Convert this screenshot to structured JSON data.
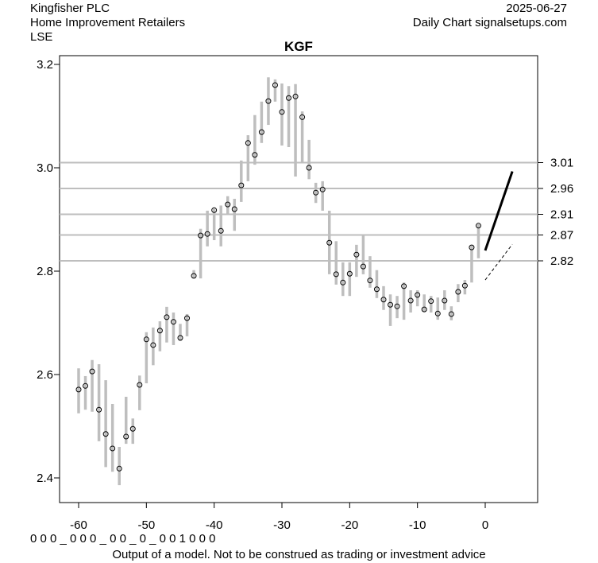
{
  "header": {
    "company": "Kingfisher PLC",
    "sector": "Home Improvement Retailers",
    "exchange": "LSE",
    "date": "2025-06-27",
    "source": "Daily Chart signalsetups.com"
  },
  "footer": {
    "signal_row": "0 0 0 _ 0 0 0 _ 0 0 _ 0 _ 0 0 1 0 0 0",
    "disclaimer": "Output of a model. Not to be construed as trading or investment advice"
  },
  "chart_data": {
    "type": "ohlc",
    "title": "KGF",
    "xlim": [
      -63,
      7.5
    ],
    "ylim": [
      2.355,
      3.22
    ],
    "x_ticks": [
      -60,
      -50,
      -40,
      -30,
      -20,
      -10,
      0
    ],
    "y_ticks": [
      2.4,
      2.6,
      2.8,
      3.0,
      3.2
    ],
    "y_tick_labels": [
      "2.4",
      "2.6",
      "2.8",
      "3.0",
      "3.2"
    ],
    "levels": [
      3.01,
      2.96,
      2.91,
      2.87,
      2.82
    ],
    "level_labels": [
      "3.01",
      "2.96",
      "2.91",
      "2.87",
      "2.82"
    ],
    "colors": {
      "bar": "#bebebe",
      "level": "#bebebe",
      "projection": "#000000"
    },
    "bars": [
      [
        -60,
        2.612,
        2.525,
        2.571
      ],
      [
        -59,
        2.597,
        2.532,
        2.578
      ],
      [
        -58,
        2.628,
        2.528,
        2.606
      ],
      [
        -57,
        2.62,
        2.471,
        2.532
      ],
      [
        -56,
        2.589,
        2.421,
        2.485
      ],
      [
        -55,
        2.543,
        2.412,
        2.457
      ],
      [
        -54,
        2.46,
        2.386,
        2.418
      ],
      [
        -53,
        2.557,
        2.466,
        2.48
      ],
      [
        -52,
        2.515,
        2.466,
        2.495
      ],
      [
        -51,
        2.598,
        2.531,
        2.58
      ],
      [
        -50,
        2.682,
        2.583,
        2.668
      ],
      [
        -49,
        2.691,
        2.618,
        2.657
      ],
      [
        -48,
        2.703,
        2.645,
        2.685
      ],
      [
        -47,
        2.731,
        2.662,
        2.711
      ],
      [
        -46,
        2.72,
        2.657,
        2.702
      ],
      [
        -45,
        2.698,
        2.665,
        2.671
      ],
      [
        -44,
        2.717,
        2.674,
        2.709
      ],
      [
        -43,
        2.802,
        2.786,
        2.791
      ],
      [
        -42,
        2.882,
        2.786,
        2.869
      ],
      [
        -41,
        2.917,
        2.848,
        2.872
      ],
      [
        -40,
        2.921,
        2.86,
        2.918
      ],
      [
        -39,
        2.927,
        2.848,
        2.878
      ],
      [
        -38,
        2.945,
        2.909,
        2.929
      ],
      [
        -37,
        2.94,
        2.878,
        2.92
      ],
      [
        -36,
        3.014,
        2.934,
        2.966
      ],
      [
        -35,
        3.063,
        2.974,
        3.048
      ],
      [
        -34,
        3.102,
        3.006,
        3.025
      ],
      [
        -33,
        3.128,
        3.048,
        3.069
      ],
      [
        -32,
        3.175,
        3.083,
        3.129
      ],
      [
        -31,
        3.171,
        3.128,
        3.16
      ],
      [
        -30,
        3.163,
        3.043,
        3.108
      ],
      [
        -29,
        3.158,
        3.04,
        3.135
      ],
      [
        -28,
        3.162,
        2.983,
        3.138
      ],
      [
        -27,
        3.109,
        3.009,
        3.098
      ],
      [
        -26,
        3.054,
        2.978,
        3.0
      ],
      [
        -25,
        2.971,
        2.932,
        2.952
      ],
      [
        -24,
        2.974,
        2.917,
        2.958
      ],
      [
        -23,
        2.917,
        2.794,
        2.855
      ],
      [
        -22,
        2.858,
        2.774,
        2.794
      ],
      [
        -21,
        2.817,
        2.752,
        2.778
      ],
      [
        -20,
        2.817,
        2.752,
        2.795
      ],
      [
        -19,
        2.851,
        2.789,
        2.832
      ],
      [
        -18,
        2.869,
        2.794,
        2.809
      ],
      [
        -17,
        2.829,
        2.768,
        2.782
      ],
      [
        -16,
        2.802,
        2.748,
        2.765
      ],
      [
        -15,
        2.771,
        2.725,
        2.745
      ],
      [
        -14,
        2.755,
        2.694,
        2.735
      ],
      [
        -13,
        2.752,
        2.709,
        2.732
      ],
      [
        -12,
        2.778,
        2.706,
        2.771
      ],
      [
        -11,
        2.763,
        2.72,
        2.743
      ],
      [
        -10,
        2.763,
        2.732,
        2.754
      ],
      [
        -9,
        2.755,
        2.722,
        2.726
      ],
      [
        -8,
        2.752,
        2.72,
        2.742
      ],
      [
        -7,
        2.749,
        2.706,
        2.718
      ],
      [
        -6,
        2.763,
        2.725,
        2.743
      ],
      [
        -5,
        2.732,
        2.705,
        2.717
      ],
      [
        -4,
        2.775,
        2.74,
        2.76
      ],
      [
        -3,
        2.783,
        2.755,
        2.772
      ],
      [
        -2,
        2.851,
        2.778,
        2.846
      ],
      [
        -1,
        2.891,
        2.825,
        2.888
      ]
    ],
    "bar_fields": [
      "x",
      "high",
      "low",
      "close"
    ],
    "projection_solid": [
      [
        0,
        2.84
      ],
      [
        4,
        2.993
      ]
    ],
    "projection_dashed": [
      [
        0,
        2.783
      ],
      [
        4,
        2.852
      ]
    ]
  }
}
